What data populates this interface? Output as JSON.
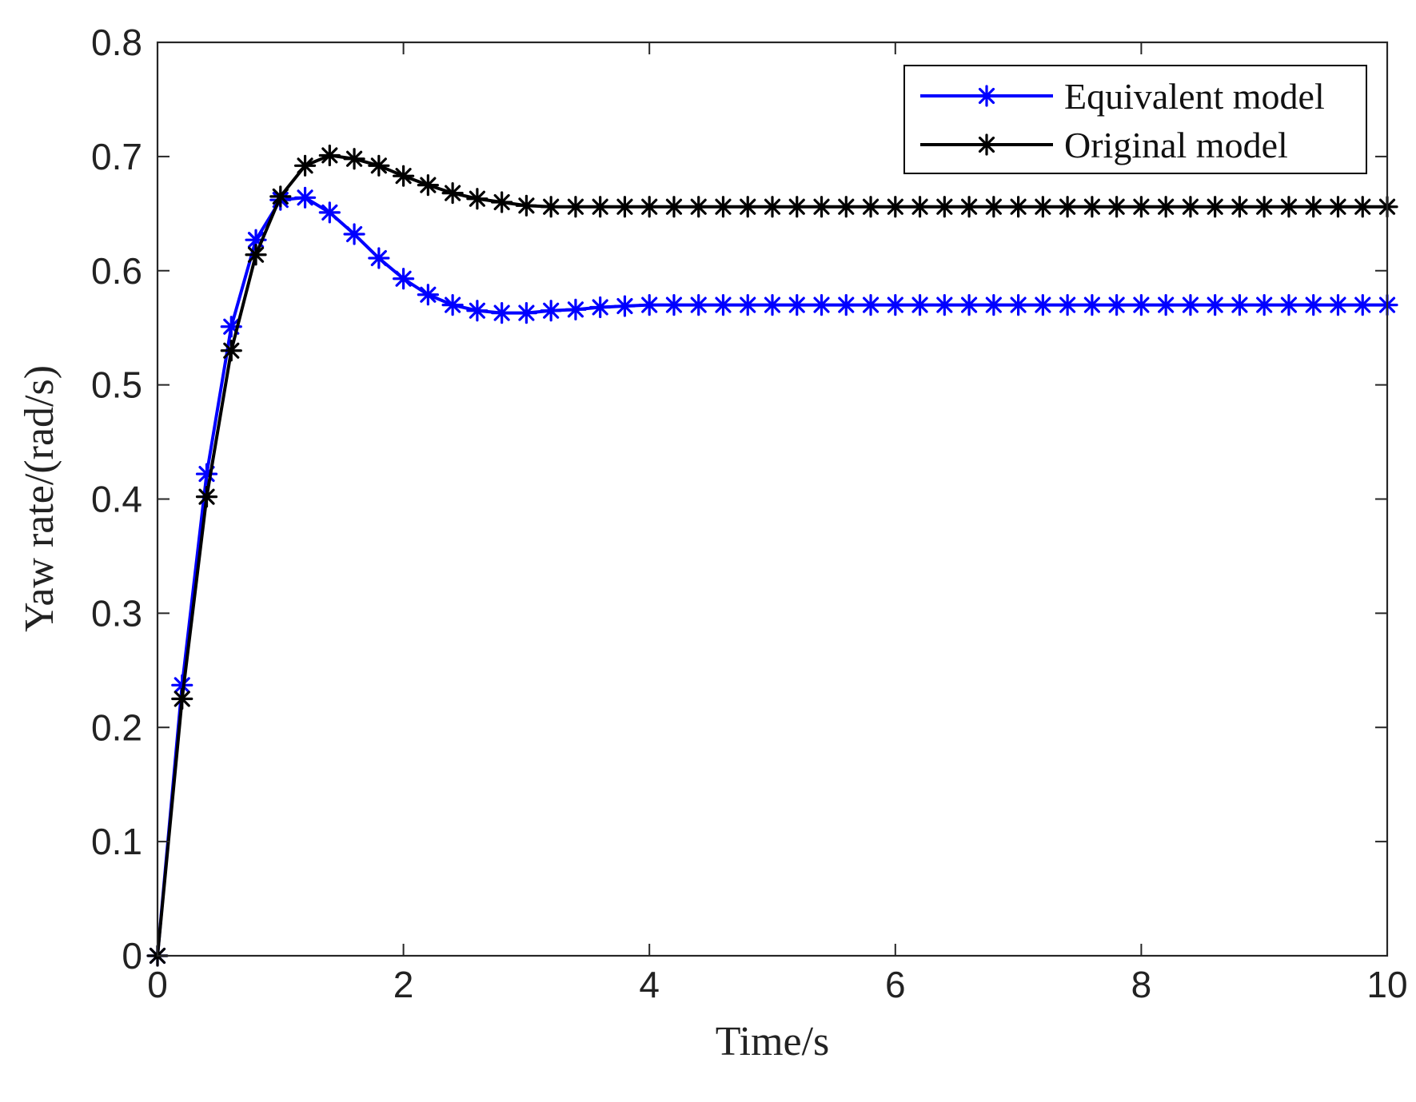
{
  "chart_data": {
    "type": "line",
    "title": "",
    "xlabel": "Time/s",
    "ylabel": "Yaw rate/(rad/s)",
    "xlim": [
      0,
      10
    ],
    "ylim": [
      0,
      0.8
    ],
    "xticks": [
      0,
      2,
      4,
      6,
      8,
      10
    ],
    "xtick_labels": [
      "0",
      "2",
      "4",
      "6",
      "8",
      "10"
    ],
    "yticks": [
      0,
      0.1,
      0.2,
      0.3,
      0.4,
      0.5,
      0.6,
      0.7,
      0.8
    ],
    "ytick_labels": [
      "0",
      "0.1",
      "0.2",
      "0.3",
      "0.4",
      "0.5",
      "0.6",
      "0.7",
      "0.8"
    ],
    "grid": false,
    "legend_position": "top-right",
    "marker": "asterisk",
    "x": [
      0,
      0.2,
      0.4,
      0.6,
      0.8,
      1.0,
      1.2,
      1.4,
      1.6,
      1.8,
      2.0,
      2.2,
      2.4,
      2.6,
      2.8,
      3.0,
      3.2,
      3.4,
      3.6,
      3.8,
      4.0,
      4.2,
      4.4,
      4.6,
      4.8,
      5.0,
      5.2,
      5.4,
      5.6,
      5.8,
      6.0,
      6.2,
      6.4,
      6.6,
      6.8,
      7.0,
      7.2,
      7.4,
      7.6,
      7.8,
      8.0,
      8.2,
      8.4,
      8.6,
      8.8,
      9.0,
      9.2,
      9.4,
      9.6,
      9.8,
      10.0
    ],
    "series": [
      {
        "name": "Equivalent model",
        "color": "#0000ff",
        "values": [
          0,
          0.237,
          0.422,
          0.551,
          0.627,
          0.662,
          0.664,
          0.651,
          0.632,
          0.611,
          0.593,
          0.579,
          0.57,
          0.565,
          0.563,
          0.563,
          0.565,
          0.566,
          0.568,
          0.569,
          0.57,
          0.57,
          0.57,
          0.57,
          0.57,
          0.57,
          0.57,
          0.57,
          0.57,
          0.57,
          0.57,
          0.57,
          0.57,
          0.57,
          0.57,
          0.57,
          0.57,
          0.57,
          0.57,
          0.57,
          0.57,
          0.57,
          0.57,
          0.57,
          0.57,
          0.57,
          0.57,
          0.57,
          0.57,
          0.57,
          0.57
        ]
      },
      {
        "name": "Original model",
        "color": "#000000",
        "values": [
          0,
          0.225,
          0.402,
          0.53,
          0.614,
          0.665,
          0.692,
          0.701,
          0.698,
          0.692,
          0.683,
          0.675,
          0.668,
          0.663,
          0.66,
          0.657,
          0.656,
          0.656,
          0.656,
          0.656,
          0.656,
          0.656,
          0.656,
          0.656,
          0.656,
          0.656,
          0.656,
          0.656,
          0.656,
          0.656,
          0.656,
          0.656,
          0.656,
          0.656,
          0.656,
          0.656,
          0.656,
          0.656,
          0.656,
          0.656,
          0.656,
          0.656,
          0.656,
          0.656,
          0.656,
          0.656,
          0.656,
          0.656,
          0.656,
          0.656,
          0.656
        ]
      }
    ]
  }
}
